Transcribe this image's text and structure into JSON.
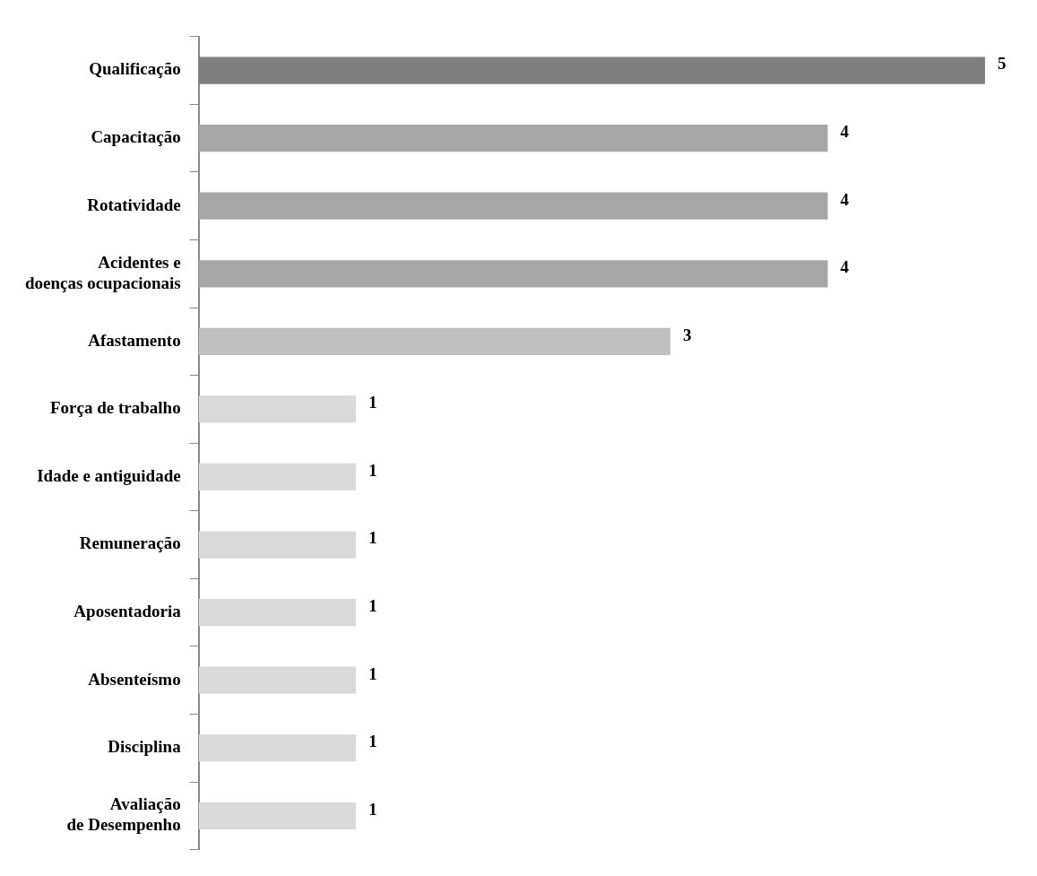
{
  "chart_data": {
    "type": "bar",
    "orientation": "horizontal",
    "categories": [
      "Qualificação",
      "Capacitação",
      "Rotatividade",
      "Acidentes e\ndoenças ocupacionais",
      "Afastamento",
      "Força de trabalho",
      "Idade e antiguidade",
      "Remuneração",
      "Aposentadoria",
      "Absenteísmo",
      "Disciplina",
      "Avaliação\nde Desempenho"
    ],
    "values": [
      5,
      4,
      4,
      4,
      3,
      1,
      1,
      1,
      1,
      1,
      1,
      1
    ],
    "colors": [
      "#7f7f7f",
      "#a6a6a6",
      "#a6a6a6",
      "#a6a6a6",
      "#bfbfbf",
      "#d9d9d9",
      "#d9d9d9",
      "#d9d9d9",
      "#d9d9d9",
      "#d9d9d9",
      "#d9d9d9",
      "#d9d9d9"
    ],
    "data_labels": true,
    "grid": false,
    "legend": false,
    "tick_labels": "y"
  }
}
